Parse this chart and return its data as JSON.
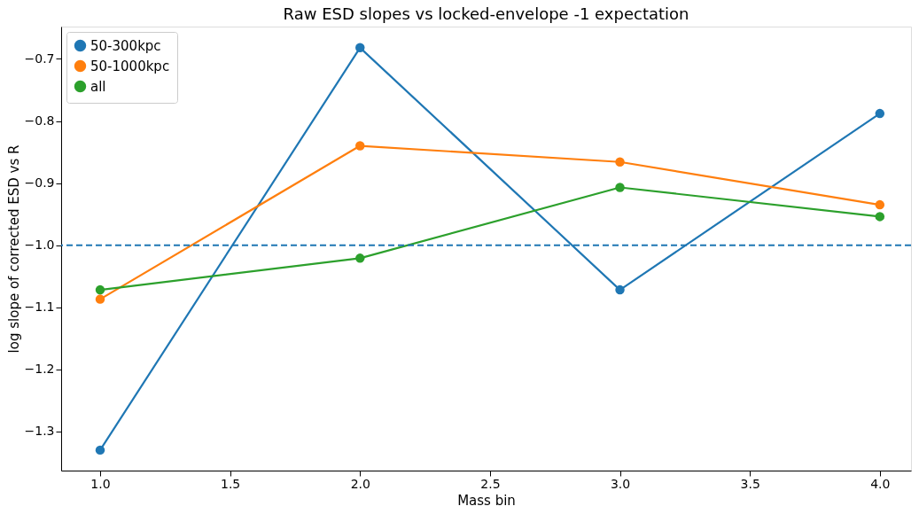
{
  "chart_data": {
    "type": "line",
    "title": "Raw ESD slopes vs locked-envelope -1 expectation",
    "xlabel": "Mass bin",
    "ylabel": "log slope of corrected ESD vs R",
    "x": [
      1,
      2,
      3,
      4
    ],
    "series": [
      {
        "name": "50-300kpc",
        "color": "#1f77b4",
        "values": [
          -1.33,
          -0.682,
          -1.072,
          -0.788
        ]
      },
      {
        "name": "50-1000kpc",
        "color": "#ff7f0e",
        "values": [
          -1.087,
          -0.84,
          -0.866,
          -0.935
        ]
      },
      {
        "name": "all",
        "color": "#2ca02c",
        "values": [
          -1.072,
          -1.021,
          -0.907,
          -0.954
        ]
      }
    ],
    "xlim": [
      0.85,
      4.12
    ],
    "ylim": [
      -1.363,
      -0.648
    ],
    "xticks": [
      {
        "value": 1,
        "label": "1.0"
      },
      {
        "value": 1.5,
        "label": "1.5"
      },
      {
        "value": 2,
        "label": "2.0"
      },
      {
        "value": 2.5,
        "label": "2.5"
      },
      {
        "value": 3,
        "label": "3.0"
      },
      {
        "value": 3.5,
        "label": "3.5"
      },
      {
        "value": 4,
        "label": "4.0"
      }
    ],
    "yticks": [
      {
        "value": -1.3,
        "label": "−1.3"
      },
      {
        "value": -1.2,
        "label": "−1.2"
      },
      {
        "value": -1.1,
        "label": "−1.1"
      },
      {
        "value": -1.0,
        "label": "−1.0"
      },
      {
        "value": -0.9,
        "label": "−0.9"
      },
      {
        "value": -0.8,
        "label": "−0.8"
      },
      {
        "value": -0.7,
        "label": "−0.7"
      }
    ],
    "ref_lines": [
      {
        "axis": "y",
        "value": -1.0,
        "color": "#1f77b4",
        "line_style": "dashed"
      }
    ],
    "legend": "top left",
    "marker": "circle",
    "line_style": "solid",
    "grid": false
  }
}
